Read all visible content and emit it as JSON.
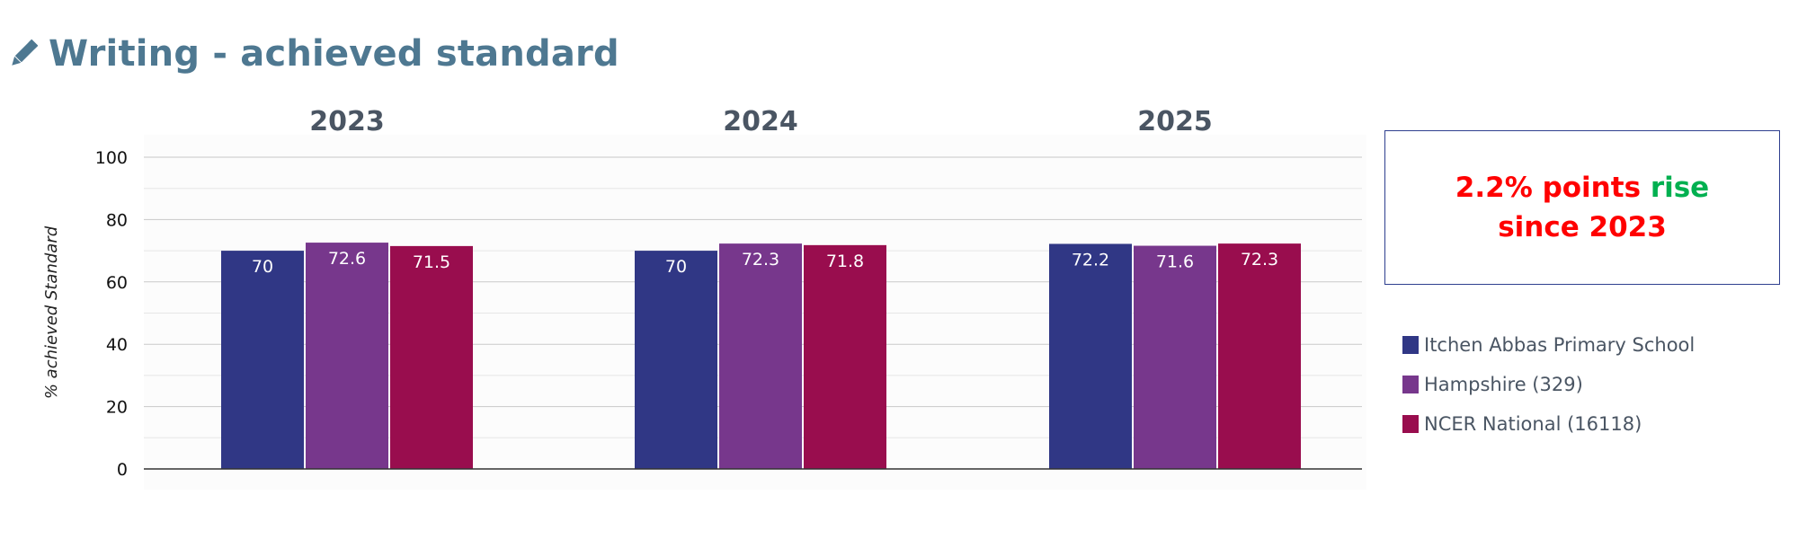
{
  "header": {
    "title": "Writing - achieved standard",
    "icon": "pencil-icon"
  },
  "callout": {
    "part1": "2.2% points ",
    "part2": "rise",
    "part3": "since 2023",
    "colors": {
      "text": "#ff0000",
      "highlight": "#00b050",
      "border": "#2f3f8f"
    }
  },
  "legend": [
    {
      "label": "Itchen Abbas Primary School",
      "color": "#303785"
    },
    {
      "label": "Hampshire (329)",
      "color": "#77378c"
    },
    {
      "label": "NCER National (16118)",
      "color": "#990d4e"
    }
  ],
  "chart_data": {
    "type": "bar",
    "categories": [
      "2023",
      "2024",
      "2025"
    ],
    "series": [
      {
        "name": "Itchen Abbas Primary School",
        "values": [
          70,
          70,
          72.2
        ],
        "color": "#303785"
      },
      {
        "name": "Hampshire (329)",
        "values": [
          72.6,
          72.3,
          71.6
        ],
        "color": "#77378c"
      },
      {
        "name": "NCER National (16118)",
        "values": [
          71.5,
          71.8,
          72.3
        ],
        "color": "#990d4e"
      }
    ],
    "value_labels": [
      [
        "70",
        "72.6",
        "71.5"
      ],
      [
        "70",
        "72.3",
        "71.8"
      ],
      [
        "72.2",
        "71.6",
        "72.3"
      ]
    ],
    "ylabel": "% achieved Standard",
    "xlabel": "",
    "ylim": [
      0,
      100
    ],
    "yticks": [
      "0",
      "20",
      "40",
      "60",
      "80",
      "100"
    ],
    "grid": true,
    "legend_position": "right"
  }
}
